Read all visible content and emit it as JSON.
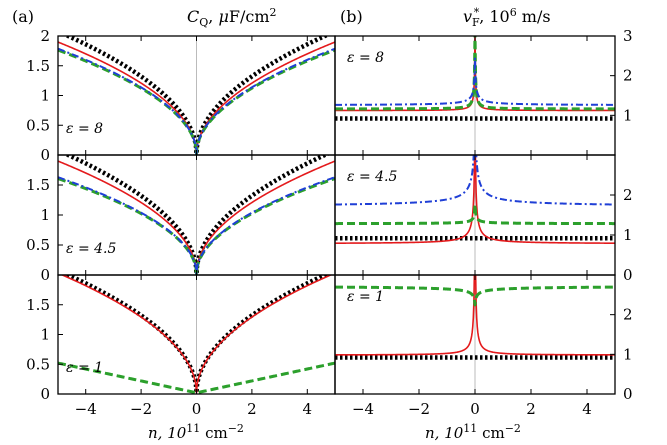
{
  "figure": {
    "panel_a_label": "(a)",
    "panel_b_label": "(b)",
    "title_a_sym": "C",
    "title_a_sub": "Q",
    "title_a_unit_prefix": ", ",
    "title_a_mu": "μ",
    "title_a_unit": "F/cm",
    "title_a_sup": "2",
    "title_b_sym": "v",
    "title_b_sub": "F",
    "title_b_sup": "*",
    "title_b_unit": ", 10",
    "title_b_unit_sup": "6",
    "title_b_unit_tail": " m/s",
    "xlabel_a": "n, 10",
    "xlabel_b": "n, 10",
    "xlabel_sup": "11",
    "xlabel_tail": " cm",
    "xlabel_tail_sup": "−2",
    "rows": [
      {
        "eps_text": "ε = 8"
      },
      {
        "eps_text": "ε = 4.5"
      },
      {
        "eps_text": "ε = 1"
      }
    ]
  },
  "chart_data": {
    "type": "line",
    "x_range": [
      -5,
      5
    ],
    "x_ticks": [
      -4,
      -2,
      0,
      2,
      4
    ],
    "x_tick_labels": [
      "−4",
      "−2",
      "0",
      "2",
      "4"
    ],
    "colors": {
      "red": "#e41a1c",
      "blue": "#1f3fd6",
      "green": "#2ca02c",
      "black": "#000000",
      "grid": "#bbbbbb"
    },
    "series_styles": {
      "red": {
        "dash": "",
        "width": 1.6
      },
      "blue": {
        "dash": "7,3,2,3",
        "width": 2
      },
      "green": {
        "dash": "8,4",
        "width": 3
      },
      "black": {
        "dash": "2.5,2.5",
        "width": 4.5
      }
    },
    "panel_a": {
      "ylim": [
        0,
        2
      ],
      "panels": [
        {
          "eps": 8,
          "y_ticks": [
            0,
            0.5,
            1,
            1.5,
            2
          ],
          "y_tick_labels": [
            "0",
            "0.5",
            "1",
            "1.5",
            "2"
          ],
          "series": [
            {
              "name": "black",
              "coef": 0.92,
              "power": 0.5
            },
            {
              "name": "red",
              "coef": 0.84,
              "power": 0.5
            },
            {
              "name": "green",
              "coef": 0.78,
              "power": 0.5
            },
            {
              "name": "blue",
              "coef": 0.79,
              "power": 0.5
            }
          ]
        },
        {
          "eps": 4.5,
          "y_ticks": [
            0,
            0.5,
            1,
            1.5
          ],
          "y_tick_labels": [
            "0",
            "0.5",
            "1",
            "1.5"
          ],
          "series": [
            {
              "name": "black",
              "coef": 0.92,
              "power": 0.5
            },
            {
              "name": "red",
              "coef": 0.84,
              "power": 0.5
            },
            {
              "name": "green",
              "coef": 0.71,
              "power": 0.5
            },
            {
              "name": "blue",
              "coef": 0.72,
              "power": 0.5
            }
          ]
        },
        {
          "eps": 1,
          "y_ticks": [
            0,
            0.5,
            1,
            1.5
          ],
          "y_tick_labels": [
            "0",
            "0.5",
            "1",
            "1.5"
          ],
          "series": [
            {
              "name": "black",
              "coef": 0.92,
              "power": 0.5
            },
            {
              "name": "red",
              "coef": 0.9,
              "power": 0.5
            },
            {
              "name": "green",
              "coef": 0.1,
              "power": 1.0
            }
          ]
        }
      ]
    },
    "panel_b": {
      "ylim": [
        0,
        3
      ],
      "panels": [
        {
          "eps": 8,
          "y_ticks": [
            1,
            2,
            3
          ],
          "y_tick_labels": [
            "1",
            "2",
            "3"
          ],
          "series": [
            {
              "name": "black",
              "base": 0.92,
              "amp": 0.0,
              "decay": 1
            },
            {
              "name": "red",
              "base": 1.12,
              "amp": 0.05,
              "decay": 1.2
            },
            {
              "name": "green",
              "base": 1.16,
              "amp": 0.05,
              "decay": 1.2
            },
            {
              "name": "blue",
              "base": 1.25,
              "amp": 0.15,
              "decay": 0.8
            }
          ]
        },
        {
          "eps": 4.5,
          "y_ticks": [
            0,
            1,
            2
          ],
          "y_tick_labels": [
            "0",
            "1",
            "2"
          ],
          "series": [
            {
              "name": "black",
              "base": 0.92,
              "amp": 0.0,
              "decay": 1
            },
            {
              "name": "red",
              "base": 0.78,
              "amp": 0.22,
              "decay": 1.0
            },
            {
              "name": "green",
              "base": 1.28,
              "amp": 0.06,
              "decay": 0.8
            },
            {
              "name": "blue",
              "base": 1.7,
              "amp": 0.55,
              "decay": 0.7
            }
          ]
        },
        {
          "eps": 1,
          "y_ticks": [
            0,
            1,
            2
          ],
          "y_tick_labels": [
            "0",
            "1",
            "2"
          ],
          "series": [
            {
              "name": "black",
              "base": 0.92,
              "amp": 0.0,
              "decay": 1
            },
            {
              "name": "red",
              "base": 0.98,
              "amp": 0.13,
              "decay": 1.2
            },
            {
              "name": "green",
              "base": 2.75,
              "amp": -0.3,
              "decay": 0.4
            }
          ]
        }
      ]
    }
  }
}
